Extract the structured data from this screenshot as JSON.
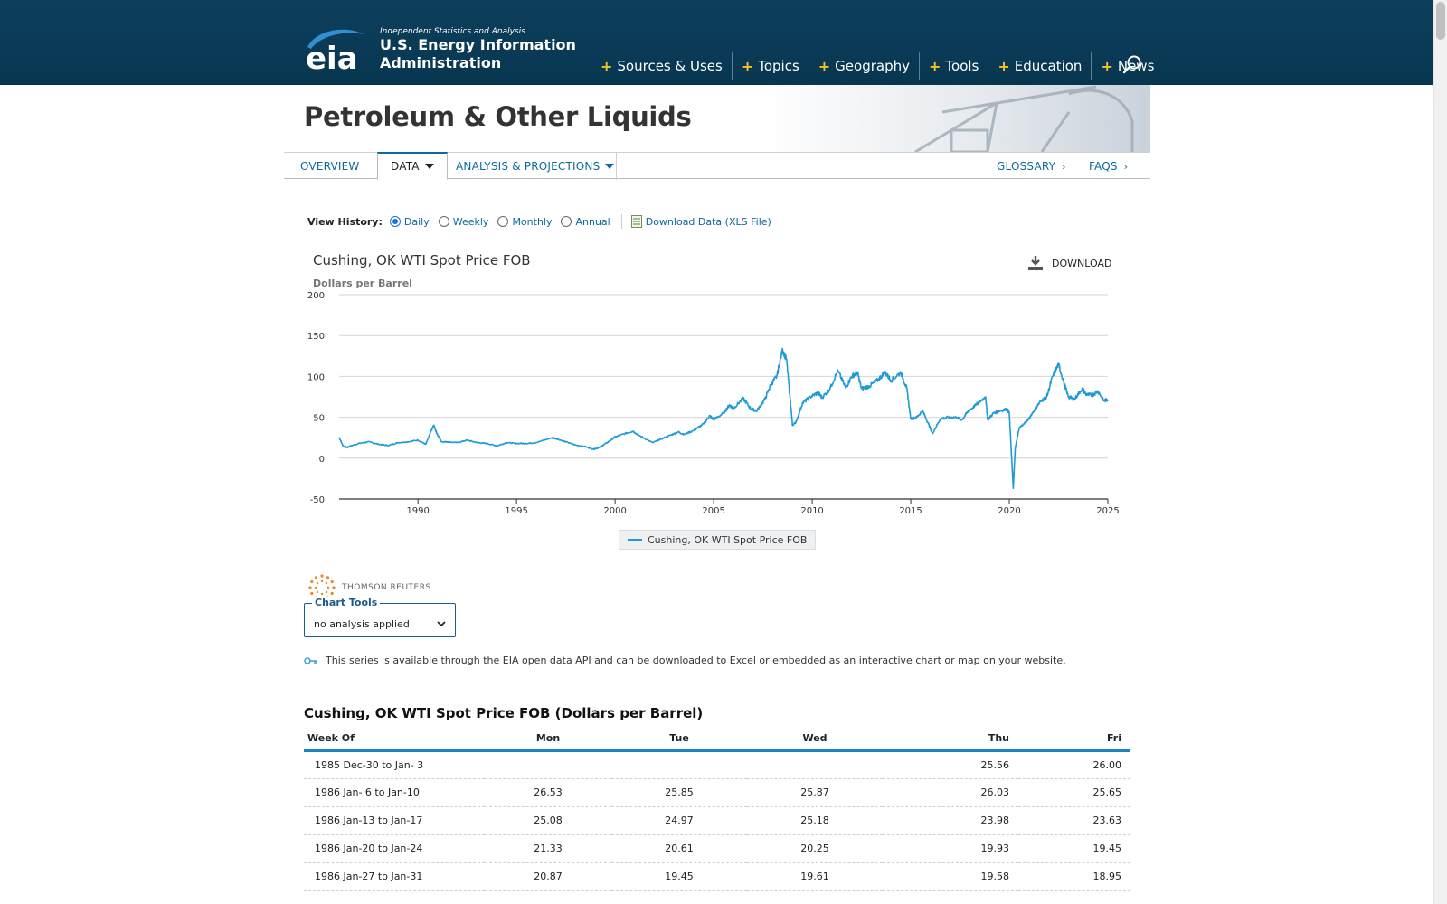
{
  "header": {
    "tagline": "Independent Statistics and Analysis",
    "name_line1": "U.S. Energy Information",
    "name_line2": "Administration",
    "logo_text": "eia",
    "nav": [
      {
        "label": "Sources & Uses"
      },
      {
        "label": "Topics"
      },
      {
        "label": "Geography"
      },
      {
        "label": "Tools"
      },
      {
        "label": "Education"
      },
      {
        "label": "News"
      }
    ],
    "accent_color": "#f6c02b",
    "background_color": "#0b3954"
  },
  "banner": {
    "title": "Petroleum & Other Liquids"
  },
  "subnav": {
    "tabs": [
      {
        "label": "OVERVIEW"
      },
      {
        "label": "DATA"
      },
      {
        "label": "ANALYSIS & PROJECTIONS"
      }
    ],
    "right": [
      {
        "label": "GLOSSARY"
      },
      {
        "label": "FAQS"
      }
    ],
    "active_tab": "DATA"
  },
  "view_history": {
    "label": "View History:",
    "options": [
      {
        "label": "Daily",
        "checked": true
      },
      {
        "label": "Weekly",
        "checked": false
      },
      {
        "label": "Monthly",
        "checked": false
      },
      {
        "label": "Annual",
        "checked": false
      }
    ],
    "download_label": "Download Data (XLS File)"
  },
  "chart": {
    "download_label": "DOWNLOAD",
    "source_label": "THOMSON REUTERS"
  },
  "chart_data": {
    "type": "line",
    "title": "Cushing, OK WTI Spot Price FOB",
    "ylabel": "Dollars per Barrel",
    "xlabel": "",
    "xlim": [
      1986.0,
      2025.0
    ],
    "ylim": [
      -50,
      200
    ],
    "yticks": [
      -50,
      0,
      50,
      100,
      150,
      200
    ],
    "xticks": [
      1990,
      1995,
      2000,
      2005,
      2010,
      2015,
      2020,
      2025
    ],
    "grid": true,
    "legend": "bottom-center",
    "series": [
      {
        "name": "Cushing, OK WTI Spot Price FOB",
        "color": "#1f9ad6",
        "x": [
          1986.0,
          1986.2,
          1986.4,
          1986.6,
          1987.0,
          1987.5,
          1988.0,
          1988.5,
          1989.0,
          1989.5,
          1990.0,
          1990.4,
          1990.7,
          1990.8,
          1991.0,
          1991.2,
          1991.5,
          1992.0,
          1992.5,
          1993.0,
          1993.5,
          1994.0,
          1994.5,
          1995.0,
          1995.5,
          1996.0,
          1996.8,
          1997.0,
          1997.5,
          1998.0,
          1998.5,
          1998.9,
          1999.2,
          1999.6,
          2000.0,
          2000.5,
          2000.9,
          2001.2,
          2001.9,
          2002.3,
          2002.8,
          2003.2,
          2003.5,
          2004.0,
          2004.5,
          2004.8,
          2005.0,
          2005.5,
          2005.8,
          2006.0,
          2006.5,
          2006.9,
          2007.2,
          2007.6,
          2007.9,
          2008.2,
          2008.5,
          2008.7,
          2008.9,
          2009.0,
          2009.2,
          2009.5,
          2009.9,
          2010.3,
          2010.5,
          2010.9,
          2011.3,
          2011.7,
          2012.0,
          2012.3,
          2012.5,
          2012.9,
          2013.3,
          2013.7,
          2014.0,
          2014.5,
          2014.8,
          2015.0,
          2015.3,
          2015.6,
          2015.9,
          2016.1,
          2016.5,
          2016.9,
          2017.3,
          2017.6,
          2017.9,
          2018.3,
          2018.8,
          2018.9,
          2019.2,
          2019.5,
          2019.9,
          2020.0,
          2020.2,
          2020.3,
          2020.5,
          2020.9,
          2021.3,
          2021.6,
          2021.9,
          2022.2,
          2022.5,
          2022.8,
          2023.0,
          2023.3,
          2023.7,
          2023.9,
          2024.2,
          2024.5,
          2024.8,
          2025.0
        ],
        "y": [
          25.5,
          15,
          13,
          15,
          18,
          20,
          17,
          15.5,
          19,
          20,
          22,
          17,
          35,
          40,
          28,
          20,
          20,
          19,
          22,
          19,
          18,
          15,
          19,
          18,
          18,
          19,
          25,
          24,
          20,
          16,
          14,
          11,
          13,
          19,
          26,
          30,
          33,
          28,
          19,
          23,
          28,
          32,
          29,
          34,
          42,
          52,
          47,
          55,
          65,
          61,
          73,
          60,
          58,
          72,
          90,
          100,
          133,
          120,
          68,
          40,
          45,
          67,
          75,
          80,
          74,
          85,
          107,
          86,
          100,
          105,
          85,
          88,
          95,
          105,
          95,
          105,
          85,
          48,
          50,
          58,
          42,
          30,
          48,
          50,
          50,
          47,
          57,
          65,
          75,
          47,
          55,
          58,
          60,
          55,
          -37,
          12,
          37,
          45,
          60,
          70,
          75,
          100,
          115,
          90,
          75,
          72,
          85,
          78,
          77,
          82,
          70,
          72
        ]
      }
    ]
  },
  "chart_tools": {
    "legend": "Chart Tools",
    "selected": "no analysis applied"
  },
  "api_note": "This series is available through the EIA open data API and can be downloaded to Excel or embedded as an interactive chart or map on your website.",
  "table": {
    "title": "Cushing, OK WTI Spot Price FOB (Dollars per Barrel)",
    "headers": [
      "Week Of",
      "Mon",
      "Tue",
      "Wed",
      "Thu",
      "Fri"
    ],
    "rows": [
      [
        "1985 Dec-30 to Jan- 3",
        "",
        "",
        "",
        "25.56",
        "26.00"
      ],
      [
        "1986 Jan- 6 to Jan-10",
        "26.53",
        "25.85",
        "25.87",
        "26.03",
        "25.65"
      ],
      [
        "1986 Jan-13 to Jan-17",
        "25.08",
        "24.97",
        "25.18",
        "23.98",
        "23.63"
      ],
      [
        "1986 Jan-20 to Jan-24",
        "21.33",
        "20.61",
        "20.25",
        "19.93",
        "19.45"
      ],
      [
        "1986 Jan-27 to Jan-31",
        "20.87",
        "19.45",
        "19.61",
        "19.58",
        "18.95"
      ]
    ]
  }
}
